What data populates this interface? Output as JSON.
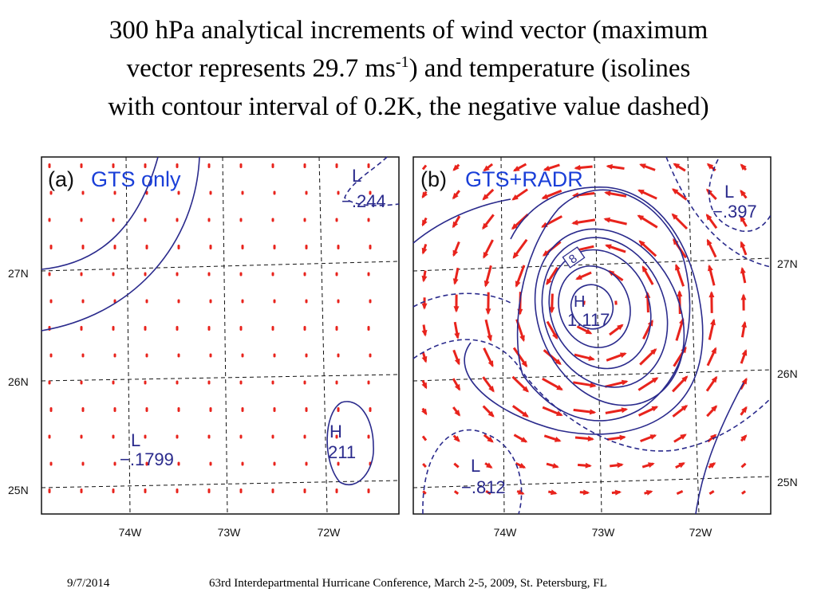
{
  "slide": {
    "title_line1": "300 hPa analytical increments of wind vector (maximum",
    "title_line2a": "vector represents 29.7 ms",
    "title_line2sup": "-1",
    "title_line2b": ") and temperature (isolines",
    "title_line3": "with contour interval of 0.2K, the negative value dashed)"
  },
  "footer": {
    "date": "9/7/2014",
    "conference": "63rd Interdepartmental Hurricane Conference, March 2-5, 2009, St. Petersburg, FL"
  },
  "colors": {
    "contour": "#2a2a8c",
    "vector": "#e8231c",
    "panel_label": "#1a3fd8",
    "grid": "#111111"
  },
  "panels": [
    {
      "label": "(a)",
      "name": "GTS only",
      "lat_labels": [
        "27N",
        "26N",
        "25N"
      ],
      "lon_labels": [
        "74W",
        "73W",
        "72W"
      ],
      "centers": [
        {
          "letter": "L",
          "value": "−.244"
        },
        {
          "letter": "L",
          "value": "−.1799"
        },
        {
          "letter": "H",
          "value": "211"
        }
      ]
    },
    {
      "label": "(b)",
      "name": "GTS+RADR",
      "lat_labels": [
        "27N",
        "26N",
        "25N"
      ],
      "lon_labels": [
        "74W",
        "73W",
        "72W"
      ],
      "centers": [
        {
          "letter": "L",
          "value": "−.397"
        },
        {
          "letter": "H",
          "value": "1.117"
        },
        {
          "letter": "L",
          "value": "−.812"
        }
      ],
      "contour_label": "8"
    }
  ]
}
